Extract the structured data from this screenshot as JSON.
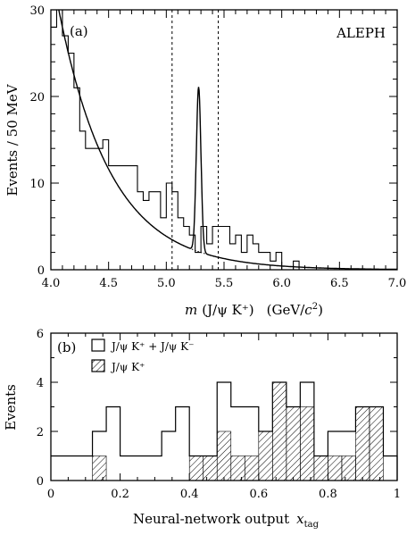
{
  "chart_data": [
    {
      "type": "histogram",
      "panel_label": "(a)",
      "annotation": "ALEPH",
      "xlabel_main": "m",
      "xlabel_arg": "(J/ψ K⁺)",
      "xlabel_unit_prefix": "(GeV/",
      "xlabel_unit_var": "c",
      "xlabel_unit_exp": "2",
      "xlabel_unit_suffix": ")",
      "ylabel": "Events / 50 MeV",
      "xlim": [
        4.0,
        7.0
      ],
      "ylim": [
        0,
        30
      ],
      "xticks": [
        "4.0",
        "4.5",
        "5.0",
        "5.5",
        "6.0",
        "6.5",
        "7.0"
      ],
      "yticks": [
        "0",
        "10",
        "20",
        "30"
      ],
      "bin_edges_start": 4.0,
      "bin_width": 0.05,
      "counts": [
        28,
        30,
        27,
        25,
        21,
        16,
        14,
        14,
        14,
        15,
        12,
        12,
        12,
        12,
        12,
        9,
        8,
        9,
        9,
        6,
        10,
        9,
        6,
        5,
        4,
        2,
        5,
        3,
        5,
        5,
        5,
        3,
        4,
        2,
        4,
        3,
        2,
        2,
        1,
        2,
        0,
        0,
        1,
        0,
        0,
        0,
        0,
        0,
        0,
        0,
        0,
        0,
        0,
        0,
        0,
        0,
        0,
        0,
        0,
        0
      ],
      "vertical_lines": [
        5.05,
        5.45
      ],
      "fit_curve": {
        "background": {
          "amplitude": 28.0,
          "decay_per_gev": 2.2,
          "start": 4.1
        },
        "signal_peak": {
          "mean": 5.28,
          "sigma": 0.02,
          "height": 19
        }
      }
    },
    {
      "type": "histogram",
      "panel_label": "(b)",
      "xlabel": "Neural-network output",
      "xlabel_var": "x",
      "xlabel_sub": "tag",
      "ylabel": "Events",
      "xlim": [
        0,
        1.0
      ],
      "ylim": [
        0,
        6
      ],
      "xticks": [
        "0",
        "0.2",
        "0.4",
        "0.6",
        "0.8",
        "1"
      ],
      "yticks": [
        "0",
        "2",
        "4",
        "6"
      ],
      "bin_width": 0.04,
      "series": [
        {
          "name": "J/ψ K⁺ + J/ψ K⁻",
          "style": "open",
          "counts": [
            1,
            1,
            1,
            2,
            3,
            1,
            1,
            1,
            2,
            3,
            1,
            1,
            4,
            3,
            3,
            2,
            4,
            3,
            4,
            1,
            2,
            2,
            3,
            3,
            1
          ]
        },
        {
          "name": "J/ψ K⁺",
          "style": "hatched",
          "counts": [
            0,
            0,
            0,
            1,
            0,
            0,
            0,
            0,
            0,
            0,
            1,
            1,
            2,
            1,
            1,
            2,
            4,
            3,
            3,
            1,
            1,
            1,
            3,
            3,
            0
          ]
        }
      ]
    }
  ]
}
